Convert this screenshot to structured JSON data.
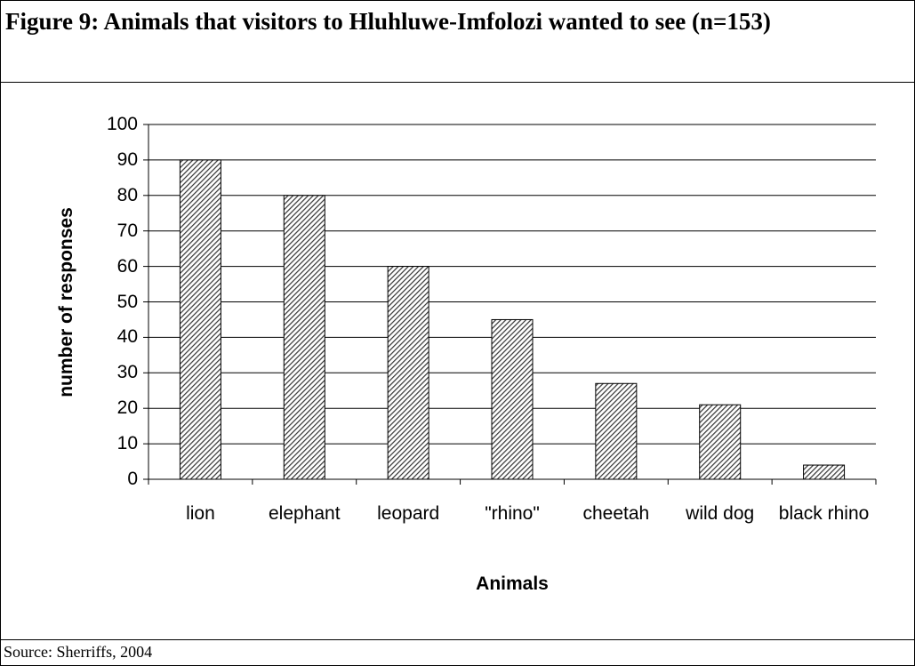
{
  "chart_data": {
    "type": "bar",
    "title": "Figure 9: Animals that visitors to Hluhluwe-Imfolozi wanted to see (n=153)",
    "source": "Source: Sherriffs, 2004",
    "x_label": "Animals",
    "y_label": "number of responses",
    "categories": [
      "lion",
      "elephant",
      "leopard",
      "\"rhino\"",
      "cheetah",
      "wild dog",
      "black rhino"
    ],
    "values": [
      90,
      80,
      60,
      45,
      27,
      21,
      4
    ],
    "color": "#333333",
    "ylim": [
      0,
      100
    ],
    "yticks": [
      0,
      10,
      20,
      30,
      40,
      50,
      60,
      70,
      80,
      90,
      100
    ],
    "grid": true
  }
}
